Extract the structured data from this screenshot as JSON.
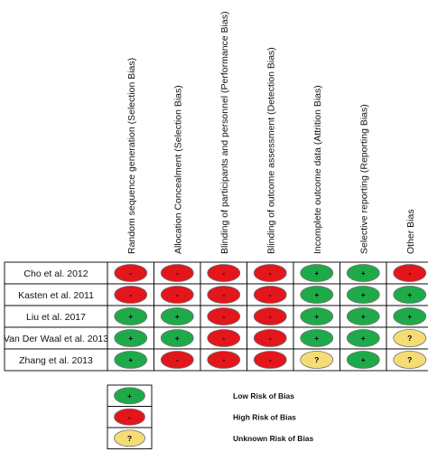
{
  "domains": [
    "Random sequence generation (Selection Bias)",
    "Allocation Concealment (Selection Bias)",
    "Blinding of participants and personnel (Performance Bias)",
    "Blinding of outcome assessment (Detection Bias)",
    "Incomplete outcome data (Attrition Bias)",
    "Selective reporting (Reporting Bias)",
    "Other Bias"
  ],
  "studies": [
    {
      "name": "Cho et al. 2012",
      "ratings": [
        "high",
        "high",
        "high",
        "high",
        "low",
        "low",
        "high"
      ]
    },
    {
      "name": "Kasten et al. 2011",
      "ratings": [
        "high",
        "high",
        "high",
        "high",
        "low",
        "low",
        "low"
      ]
    },
    {
      "name": "Liu et al. 2017",
      "ratings": [
        "low",
        "low",
        "high",
        "high",
        "low",
        "low",
        "low"
      ]
    },
    {
      "name": "Van Der Waal et al. 2013",
      "ratings": [
        "low",
        "low",
        "high",
        "high",
        "low",
        "low",
        "unknown"
      ]
    },
    {
      "name": "Zhang et al.  2013",
      "ratings": [
        "low",
        "high",
        "high",
        "high",
        "unknown",
        "low",
        "unknown"
      ]
    }
  ],
  "legend": [
    {
      "key": "low",
      "label": "Low Risk of Bias"
    },
    {
      "key": "high",
      "label": "High Risk of Bias"
    },
    {
      "key": "unknown",
      "label": "Unknown Risk of Bias"
    }
  ],
  "rating_styles": {
    "low": {
      "color": "#1faa4a",
      "symbol": "+"
    },
    "high": {
      "color": "#e3161b",
      "symbol": "-"
    },
    "unknown": {
      "color": "#f6dc74",
      "symbol": "?"
    }
  }
}
